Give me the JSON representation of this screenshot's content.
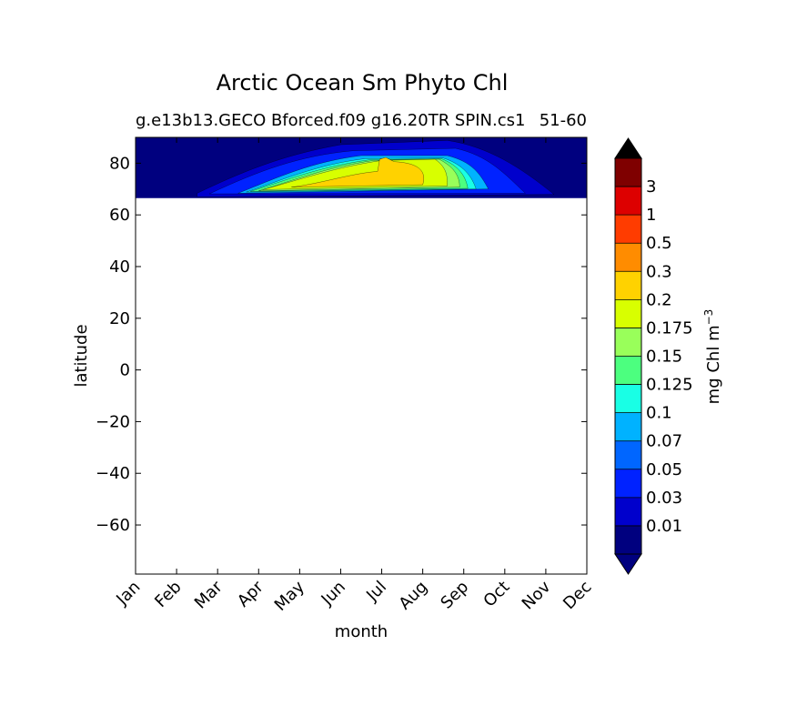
{
  "chart_data": {
    "type": "heatmap",
    "title": "Arctic Ocean Sm Phyto Chl",
    "subtitle_left": "g.e13b13.GECO Bforced.f09 g16.20TR SPIN.cs1",
    "subtitle_right": "51-60",
    "xlabel": "month",
    "ylabel": "latitude",
    "x_categories": [
      "Jan",
      "Feb",
      "Mar",
      "Apr",
      "May",
      "Jun",
      "Jul",
      "Aug",
      "Sep",
      "Oct",
      "Nov",
      "Dec"
    ],
    "ylim": [
      -79,
      90
    ],
    "y_ticks": [
      "80",
      "60",
      "40",
      "20",
      "0",
      "−20",
      "−40",
      "−60"
    ],
    "y_tick_values": [
      80,
      60,
      40,
      20,
      0,
      -20,
      -40,
      -60
    ],
    "data_lat_range": [
      66.5,
      90
    ],
    "colorbar": {
      "label": "mg Chl m",
      "label_exponent": "−3",
      "extend": "both",
      "levels": [
        "0.01",
        "0.03",
        "0.05",
        "0.07",
        "0.1",
        "0.125",
        "0.15",
        "0.175",
        "0.2",
        "0.3",
        "0.5",
        "1",
        "3"
      ],
      "colors": [
        "#00007f",
        "#0000cc",
        "#0022ff",
        "#0066ff",
        "#00b2ff",
        "#19ffe5",
        "#4cff7f",
        "#99ff5a",
        "#d8ff00",
        "#ffd200",
        "#ff8c00",
        "#ff3c00",
        "#dd0000",
        "#7f0000"
      ],
      "under_color": "#00007f",
      "over_color": "#000000"
    },
    "filled_regions": [
      {
        "level": "0.01",
        "lat_extent": [
          66.5,
          90
        ],
        "months": [
          "Jan",
          "Dec"
        ]
      },
      {
        "level": "0.03",
        "lat_extent": [
          67,
          83
        ],
        "months": [
          "Mar",
          "Nov"
        ]
      },
      {
        "level": "0.05",
        "lat_extent": [
          67.5,
          82
        ],
        "months": [
          "Apr",
          "Oct"
        ]
      },
      {
        "level": "0.1",
        "lat_extent": [
          68,
          81.5
        ],
        "months": [
          "Apr",
          "Sep"
        ]
      },
      {
        "level": "0.2",
        "lat_extent": [
          68.5,
          81
        ],
        "months": [
          "Apr",
          "Sep"
        ]
      },
      {
        "level": "0.3",
        "lat_extent": [
          69,
          82
        ],
        "months": [
          "May",
          "Aug"
        ]
      }
    ]
  }
}
